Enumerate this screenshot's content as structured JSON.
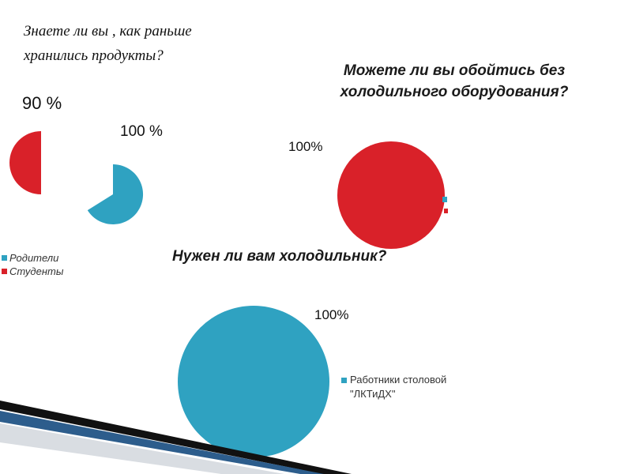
{
  "colors": {
    "parents": "#2fa2c1",
    "students": "#d92129",
    "staff": "#2fa2c1"
  },
  "chart_data": [
    {
      "type": "pie",
      "title": "Знаете ли вы , как раньше хранились продукты?",
      "title_lines": [
        "Знаете ли вы , как раньше",
        "хранились продукты?"
      ],
      "series": [
        {
          "name": "Студенты",
          "value": 90,
          "label": "90 %"
        },
        {
          "name": "Родители",
          "value": 100,
          "label": "100 %"
        }
      ],
      "legend": [
        "Родители",
        "Студенты"
      ]
    },
    {
      "type": "pie",
      "title": "Можете ли вы обойтись без холодильного оборудования?",
      "title_lines": [
        "Можете ли вы обойтись без",
        "холодильного оборудования?"
      ],
      "values": [
        100
      ],
      "label": "100%"
    },
    {
      "type": "pie",
      "title": "Нужен ли вам холодильник?",
      "values": [
        100
      ],
      "label": "100%",
      "legend": [
        "Работники столовой \"ЛКТиДХ\""
      ]
    }
  ]
}
